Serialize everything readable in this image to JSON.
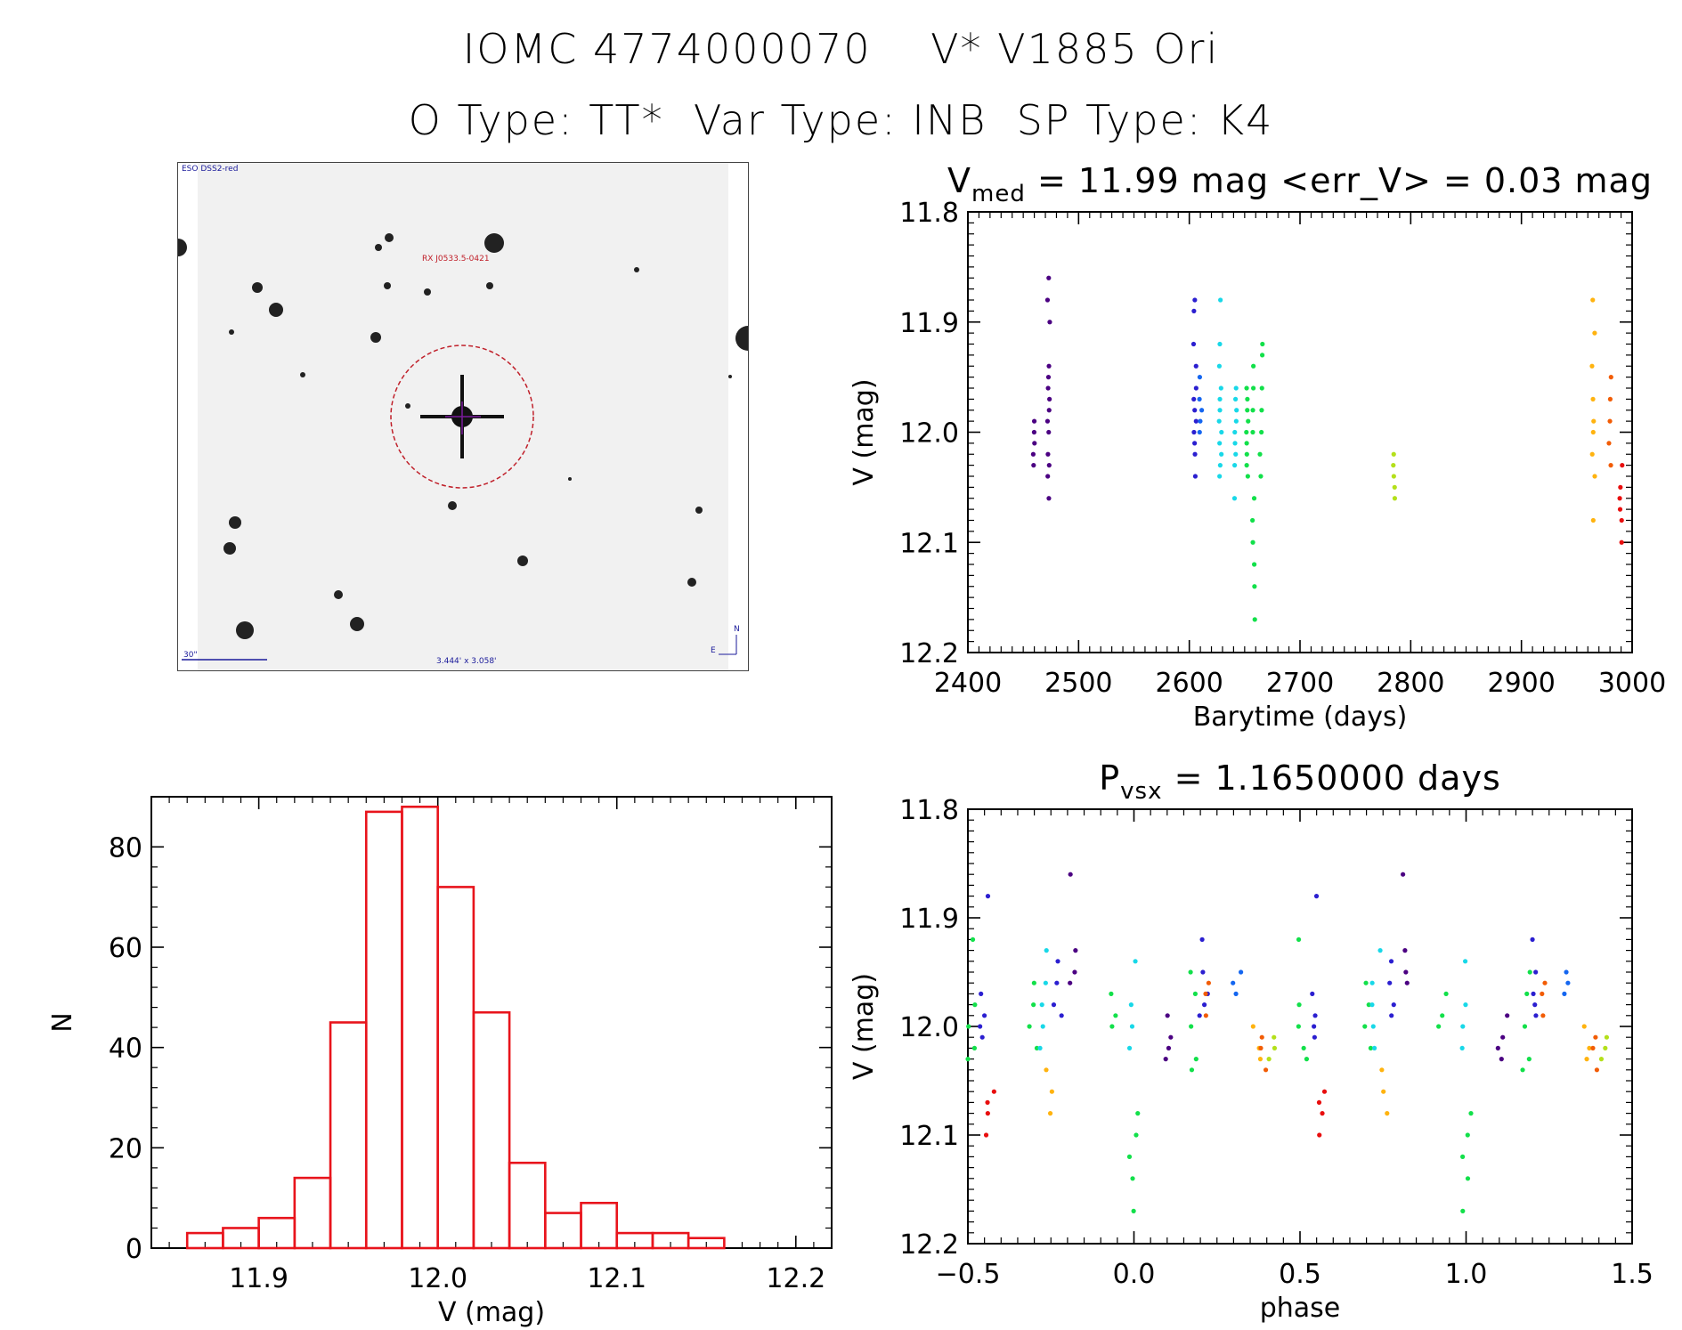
{
  "header": {
    "title_line1": "IOMC 4774000070    V* V1885 Ori",
    "title_line2": "O Type: TT*  Var Type: INB  SP Type: K4"
  },
  "finder_chart": {
    "survey_label": "ESO DSS2-red",
    "object_label": "RX J0533.5-0421",
    "scale_label": "30\"",
    "fov_label": "3.444' x 3.058'",
    "north_label": "N",
    "east_label": "E"
  },
  "colors": {
    "histogram": "#e8141c",
    "palette": [
      "#4b0082",
      "#2b1fd0",
      "#1466f0",
      "#18d8e8",
      "#12e04a",
      "#b4e01a",
      "#ffb30f",
      "#f25c05",
      "#e80e0e"
    ]
  },
  "chart_data": [
    {
      "id": "lightcurve",
      "type": "scatter",
      "title": "V<sub>med</sub> = 11.99 mag <err_V> = 0.03 mag",
      "title_parts": [
        "V",
        "med",
        " = 11.99 mag <err_V> = 0.03 mag"
      ],
      "xlabel": "Barytime (days)",
      "ylabel": "V (mag)",
      "xlim": [
        2400,
        3000
      ],
      "ylim": [
        12.2,
        11.8
      ],
      "xticks": [
        2400,
        2500,
        2600,
        2700,
        2800,
        2900,
        3000
      ],
      "yticks": [
        11.8,
        11.9,
        12.0,
        12.1,
        12.2
      ],
      "groups": [
        {
          "color": "#4b0082",
          "x": 2460,
          "values": [
            11.99,
            12.01,
            12.02,
            12.03,
            12.0
          ]
        },
        {
          "color": "#4b0082",
          "x": 2473,
          "values": [
            11.86,
            11.88,
            11.9,
            11.94,
            11.95,
            11.96,
            11.97,
            11.98,
            11.99,
            12.0,
            12.02,
            12.03,
            12.04,
            12.06
          ]
        },
        {
          "color": "#2b1fd0",
          "x": 2605,
          "values": [
            11.88,
            11.89,
            11.92,
            11.94,
            11.96,
            11.97,
            11.98,
            11.99,
            12.0,
            12.01,
            12.02,
            12.04
          ]
        },
        {
          "color": "#1466f0",
          "x": 2610,
          "values": [
            11.95,
            11.97,
            11.98,
            11.99,
            12.0
          ]
        },
        {
          "color": "#18d8e8",
          "x": 2628,
          "values": [
            11.88,
            11.92,
            11.94,
            11.96,
            11.97,
            11.98,
            11.99,
            12.0,
            12.01,
            12.02,
            12.03,
            12.04
          ]
        },
        {
          "color": "#18d8e8",
          "x": 2642,
          "values": [
            11.96,
            11.97,
            11.98,
            11.99,
            12.0,
            12.01,
            12.02,
            12.03,
            12.06
          ]
        },
        {
          "color": "#12e04a",
          "x": 2652,
          "values": [
            11.96,
            11.97,
            11.98,
            11.99,
            12.0,
            12.01,
            12.02,
            12.03,
            12.04
          ]
        },
        {
          "color": "#12e04a",
          "x": 2658,
          "values": [
            11.94,
            11.96,
            11.98,
            12.0,
            12.06,
            12.08,
            12.1,
            12.12,
            12.14,
            12.17
          ]
        },
        {
          "color": "#12e04a",
          "x": 2665,
          "values": [
            11.92,
            11.93,
            11.96,
            11.98,
            12.0,
            12.02,
            12.04
          ]
        },
        {
          "color": "#b4e01a",
          "x": 2785,
          "values": [
            12.02,
            12.03,
            12.04,
            12.05,
            12.06
          ]
        },
        {
          "color": "#ffb30f",
          "x": 2965,
          "values": [
            11.88,
            11.91,
            11.94,
            11.97,
            11.99,
            12.0,
            12.02,
            12.04,
            12.08
          ]
        },
        {
          "color": "#f25c05",
          "x": 2980,
          "values": [
            11.95,
            11.97,
            11.99,
            12.01,
            12.03
          ]
        },
        {
          "color": "#e80e0e",
          "x": 2990,
          "values": [
            12.03,
            12.05,
            12.06,
            12.07,
            12.08,
            12.1
          ]
        }
      ]
    },
    {
      "id": "histogram",
      "type": "bar",
      "title": "",
      "xlabel": "V (mag)",
      "ylabel": "N",
      "xlim": [
        11.84,
        12.22
      ],
      "ylim": [
        0,
        90
      ],
      "xticks": [
        11.9,
        12.0,
        12.1,
        12.2
      ],
      "yticks": [
        0,
        20,
        40,
        60,
        80
      ],
      "bin_width": 0.02,
      "bin_starts": [
        11.86,
        11.88,
        11.9,
        11.92,
        11.94,
        11.96,
        11.98,
        12.0,
        12.02,
        12.04,
        12.06,
        12.08,
        12.1,
        12.12,
        12.14,
        12.16
      ],
      "values": [
        3,
        4,
        6,
        14,
        45,
        87,
        88,
        72,
        47,
        17,
        7,
        9,
        3,
        3,
        2,
        0
      ]
    },
    {
      "id": "phased",
      "type": "scatter",
      "title_parts": [
        "P",
        "vsx",
        " = 1.1650000 days"
      ],
      "xlabel": "phase",
      "ylabel": "V (mag)",
      "xlim": [
        -0.5,
        1.5
      ],
      "ylim": [
        12.2,
        11.8
      ],
      "xticks": [
        -0.5,
        0.0,
        0.5,
        1.0,
        1.5
      ],
      "yticks": [
        11.8,
        11.9,
        12.0,
        12.1,
        12.2
      ],
      "period": 1.0,
      "groups": [
        {
          "color": "#12e04a",
          "x": -0.49,
          "values": [
            11.92,
            11.98,
            12.0,
            12.02,
            12.03
          ]
        },
        {
          "color": "#2b1fd0",
          "x": -0.45,
          "values": [
            11.88,
            11.97,
            11.99,
            12.0,
            12.01
          ]
        },
        {
          "color": "#e80e0e",
          "x": -0.43,
          "values": [
            12.06,
            12.07,
            12.08,
            12.1
          ]
        },
        {
          "color": "#12e04a",
          "x": -0.3,
          "values": [
            11.96,
            11.98,
            12.0,
            12.02
          ]
        },
        {
          "color": "#18d8e8",
          "x": -0.27,
          "values": [
            11.93,
            11.96,
            11.98,
            12.0,
            12.02
          ]
        },
        {
          "color": "#ffb30f",
          "x": -0.25,
          "values": [
            12.04,
            12.06,
            12.08
          ]
        },
        {
          "color": "#2b1fd0",
          "x": -0.23,
          "values": [
            11.94,
            11.96,
            11.98,
            11.99
          ]
        },
        {
          "color": "#4b0082",
          "x": -0.19,
          "values": [
            11.86,
            11.93,
            11.95,
            11.96
          ]
        },
        {
          "color": "#12e04a",
          "x": -0.07,
          "values": [
            11.97,
            11.99,
            12.0
          ]
        },
        {
          "color": "#18d8e8",
          "x": -0.01,
          "values": [
            11.94,
            11.98,
            12.0,
            12.02
          ]
        },
        {
          "color": "#12e04a",
          "x": 0.0,
          "values": [
            12.08,
            12.1,
            12.12,
            12.14,
            12.17
          ]
        },
        {
          "color": "#4b0082",
          "x": 0.11,
          "values": [
            11.99,
            12.01,
            12.02,
            12.03
          ]
        },
        {
          "color": "#12e04a",
          "x": 0.18,
          "values": [
            11.95,
            11.97,
            12.0,
            12.03,
            12.04
          ]
        },
        {
          "color": "#2b1fd0",
          "x": 0.21,
          "values": [
            11.92,
            11.95,
            11.97,
            11.98,
            11.99
          ]
        },
        {
          "color": "#f25c05",
          "x": 0.23,
          "values": [
            11.96,
            11.97,
            11.99
          ]
        },
        {
          "color": "#1466f0",
          "x": 0.31,
          "values": [
            11.95,
            11.96,
            11.97
          ]
        },
        {
          "color": "#ffb30f",
          "x": 0.37,
          "values": [
            12.0,
            12.02,
            12.03
          ]
        },
        {
          "color": "#f25c05",
          "x": 0.39,
          "values": [
            12.01,
            12.02,
            12.04
          ]
        },
        {
          "color": "#b4e01a",
          "x": 0.41,
          "values": [
            12.01,
            12.02,
            12.03
          ]
        }
      ]
    }
  ]
}
